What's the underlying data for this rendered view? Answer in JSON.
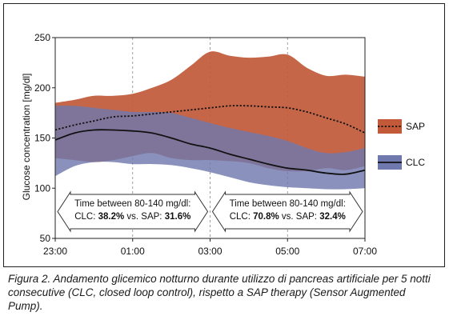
{
  "chart_data": {
    "type": "area",
    "title": "",
    "xlabel": "",
    "ylabel": "Glucose concentration [mg/dl]",
    "ylim": [
      50,
      250
    ],
    "yticks": [
      50,
      100,
      150,
      200,
      250
    ],
    "xticks": [
      "23:00",
      "01:00",
      "03:00",
      "05:00",
      "07:00"
    ],
    "xlim_hours": [
      0,
      8
    ],
    "grid": "vertical dashed at ticks",
    "legend_position": "right",
    "x": [
      0,
      0.5,
      1,
      1.5,
      2,
      2.5,
      3,
      3.5,
      4,
      4.5,
      5,
      5.5,
      6,
      6.5,
      7,
      7.5,
      8
    ],
    "series": [
      {
        "name": "SAP",
        "color": "#c25a3a",
        "line_style": "dotted",
        "median": [
          158,
          163,
          167,
          171,
          172,
          174,
          176,
          178,
          180,
          182,
          182,
          181,
          180,
          176,
          170,
          164,
          155
        ],
        "upper": [
          185,
          188,
          192,
          192,
          194,
          200,
          208,
          222,
          236,
          232,
          230,
          231,
          233,
          220,
          212,
          213,
          211
        ],
        "lower": [
          130,
          128,
          126,
          128,
          132,
          135,
          130,
          128,
          128,
          127,
          125,
          120,
          117,
          117,
          120,
          118,
          122
        ]
      },
      {
        "name": "CLC",
        "color": "#6f79ad",
        "line_style": "solid",
        "median": [
          148,
          155,
          158,
          158,
          157,
          155,
          150,
          144,
          140,
          134,
          129,
          124,
          120,
          118,
          115,
          114,
          118
        ],
        "upper": [
          182,
          182,
          180,
          178,
          176,
          176,
          175,
          170,
          165,
          160,
          156,
          152,
          147,
          140,
          135,
          136,
          140
        ],
        "lower": [
          112,
          122,
          126,
          126,
          124,
          124,
          123,
          120,
          116,
          111,
          106,
          103,
          101,
          100,
          99,
          99,
          100
        ]
      }
    ],
    "annotations": [
      {
        "line1": "Time between 80-140 mg/dl:",
        "clc_label": "CLC: ",
        "clc_value": "38.2%",
        "vs_label": " vs. SAP: ",
        "sap_value": "31.6%",
        "x_from_hours": 0,
        "x_to_hours": 4
      },
      {
        "line1": "Time between 80-140 mg/dl:",
        "clc_label": "CLC: ",
        "clc_value": "70.8%",
        "vs_label": " vs. SAP: ",
        "sap_value": "32.4%",
        "x_from_hours": 4,
        "x_to_hours": 8
      }
    ]
  },
  "caption": "Figura 2. Andamento glicemico notturno durante utilizzo di pancreas artificiale per 5 notti consecutive (CLC, closed loop control), rispetto a SAP therapy (Sensor Augmented Pump)."
}
